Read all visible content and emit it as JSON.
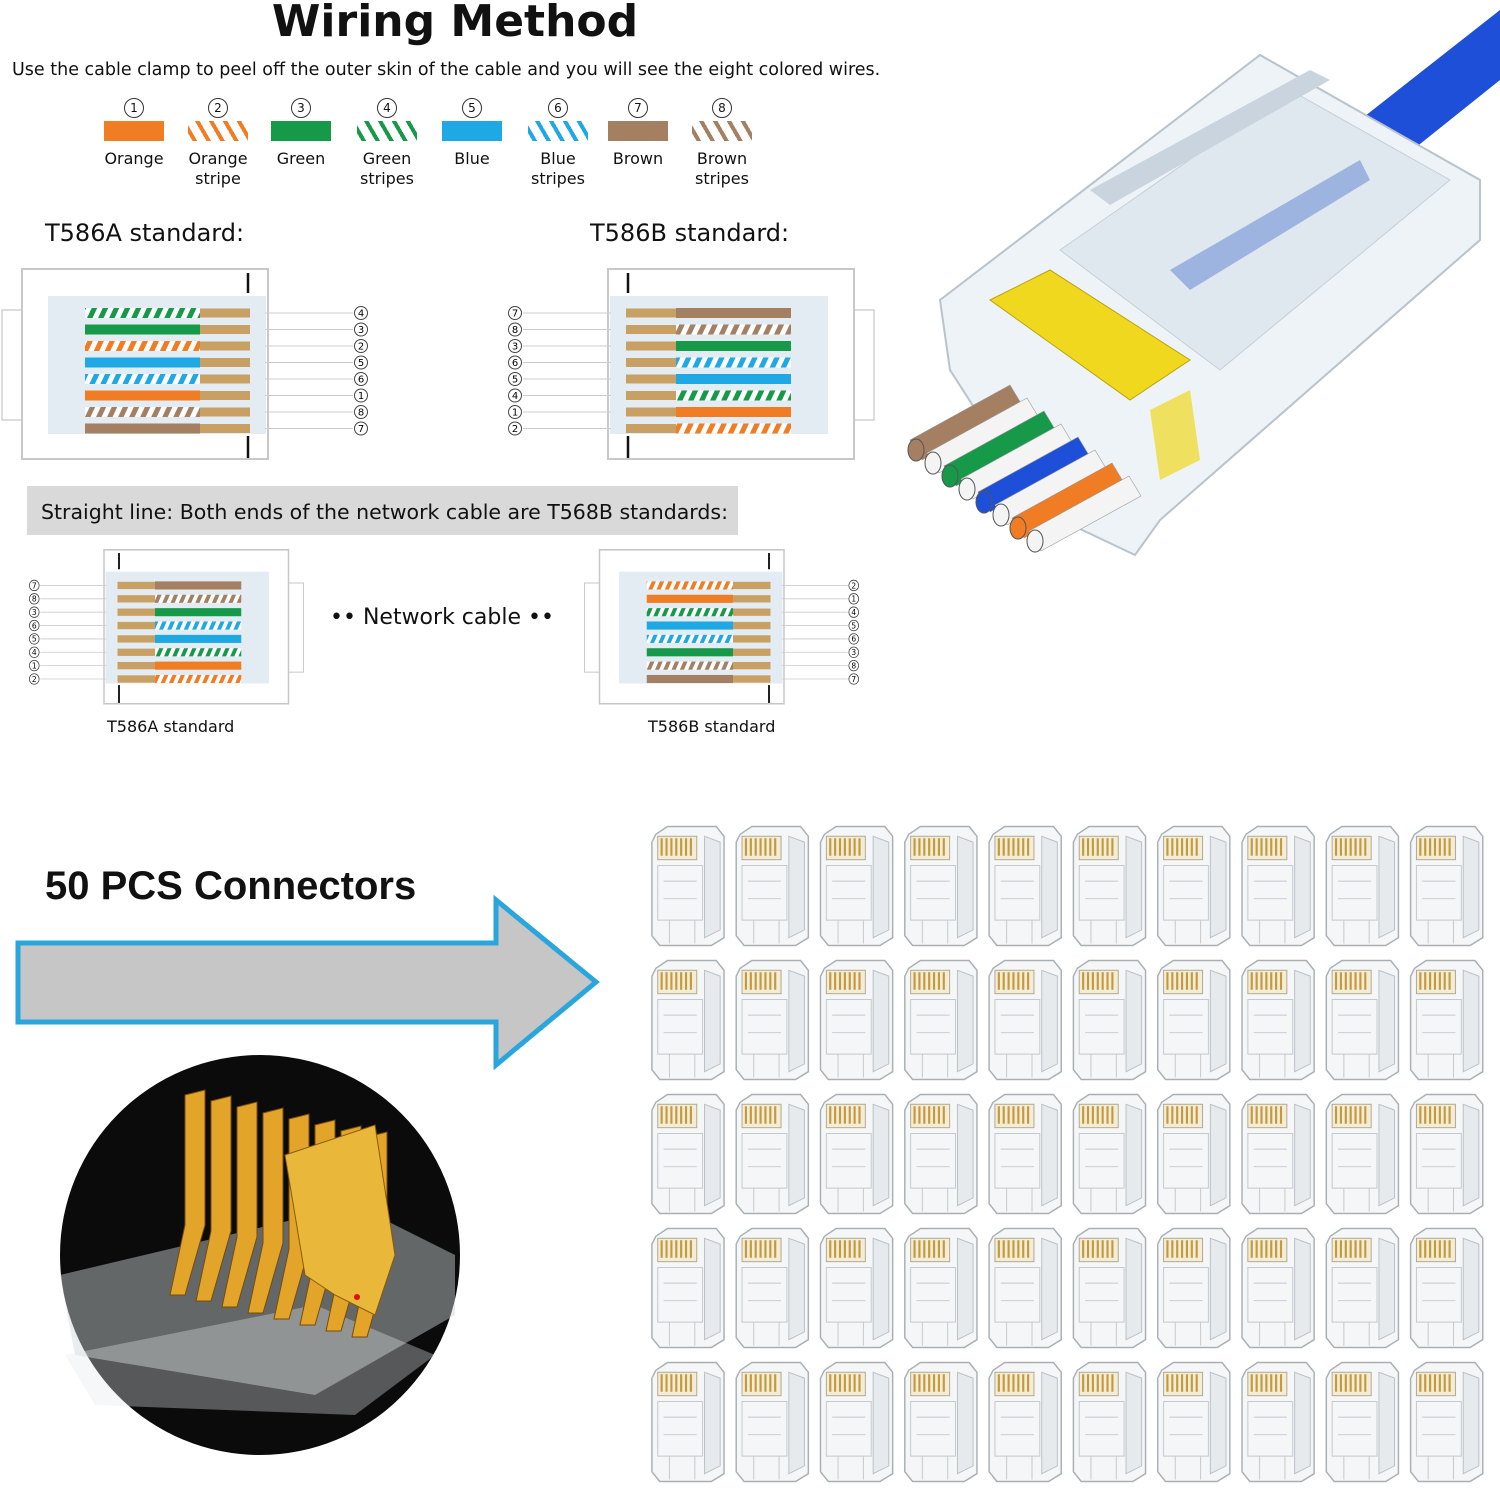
{
  "title": "Wiring Method",
  "subtitle": "Use the cable clamp to peel off the outer skin of the cable and you will see the eight colored wires.",
  "colors": {
    "orange": "#f07c24",
    "green": "#17994a",
    "blue": "#1ea8e4",
    "brown": "#a57f62",
    "contact": "#c9a064",
    "arrow_fill": "#c6c6c6",
    "arrow_border": "#2aa6dd",
    "cable_blue": "#1d4fd8"
  },
  "legend": [
    {
      "num": "1",
      "label": "Orange",
      "color": "orange",
      "striped": false
    },
    {
      "num": "2",
      "label": "Orange stripe",
      "color": "orange",
      "striped": true
    },
    {
      "num": "3",
      "label": "Green",
      "color": "green",
      "striped": false
    },
    {
      "num": "4",
      "label": "Green stripes",
      "color": "green",
      "striped": true
    },
    {
      "num": "5",
      "label": "Blue",
      "color": "blue",
      "striped": false
    },
    {
      "num": "6",
      "label": "Blue stripes",
      "color": "blue",
      "striped": true
    },
    {
      "num": "7",
      "label": "Brown",
      "color": "brown",
      "striped": false
    },
    {
      "num": "8",
      "label": "Brown stripes",
      "color": "brown",
      "striped": true
    }
  ],
  "headings": {
    "a": "T586A standard:",
    "b": "T586B standard:"
  },
  "diagrams": {
    "top_a": [
      "4",
      "3",
      "2",
      "5",
      "6",
      "1",
      "8",
      "7"
    ],
    "top_b": [
      "7",
      "8",
      "3",
      "6",
      "5",
      "4",
      "1",
      "2"
    ],
    "bottom_a": [
      "7",
      "8",
      "3",
      "6",
      "5",
      "4",
      "1",
      "2"
    ],
    "bottom_b": [
      "2",
      "1",
      "4",
      "5",
      "6",
      "3",
      "8",
      "7"
    ]
  },
  "straight_line": "Straight line: Both ends of the network cable are T568B standards:",
  "network_cable": "•• Network cable ••",
  "bottom_labels": {
    "a": "T586A standard",
    "b": "T586B standard"
  },
  "pcs_label": "50 PCS Connectors",
  "connector_count": 50
}
